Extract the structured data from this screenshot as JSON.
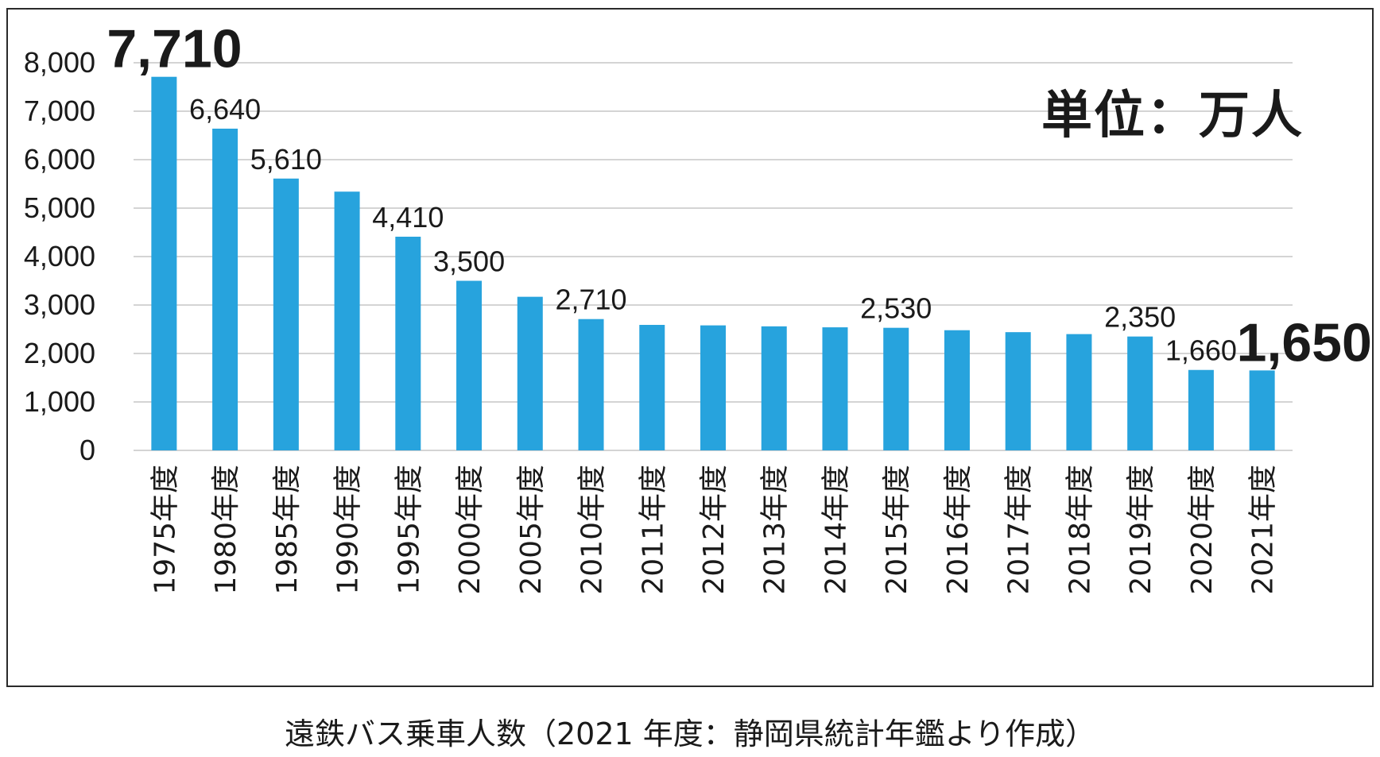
{
  "chart_data": {
    "type": "bar",
    "unit_label": "単位：万人",
    "caption": "遠鉄バス乗車人数（2021 年度：静岡県統計年鑑より作成）",
    "categories": [
      "1975年度",
      "1980年度",
      "1985年度",
      "1990年度",
      "1995年度",
      "2000年度",
      "2005年度",
      "2010年度",
      "2011年度",
      "2012年度",
      "2013年度",
      "2014年度",
      "2015年度",
      "2016年度",
      "2017年度",
      "2018年度",
      "2019年度",
      "2020年度",
      "2021年度"
    ],
    "values": [
      7710,
      6640,
      5610,
      5340,
      4410,
      3500,
      3170,
      2710,
      2590,
      2580,
      2560,
      2540,
      2530,
      2480,
      2440,
      2400,
      2350,
      1660,
      1650
    ],
    "data_labels": [
      "7,710",
      "6,640",
      "5,610",
      "",
      "4,410",
      "3,500",
      "",
      "2,710",
      "",
      "",
      "",
      "",
      "2,530",
      "",
      "",
      "",
      "2,350",
      "1,660",
      "1,650"
    ],
    "emphasized_labels": [
      "7,710",
      "1,650"
    ],
    "ylim": [
      0,
      8000
    ],
    "yticks": [
      0,
      1000,
      2000,
      3000,
      4000,
      5000,
      6000,
      7000,
      8000
    ],
    "ytick_labels": [
      "0",
      "1,000",
      "2,000",
      "3,000",
      "4,000",
      "5,000",
      "6,000",
      "7,000",
      "8,000"
    ],
    "grid": true,
    "bar_color": "#27a3dd",
    "grid_color": "#d4d4d4"
  }
}
